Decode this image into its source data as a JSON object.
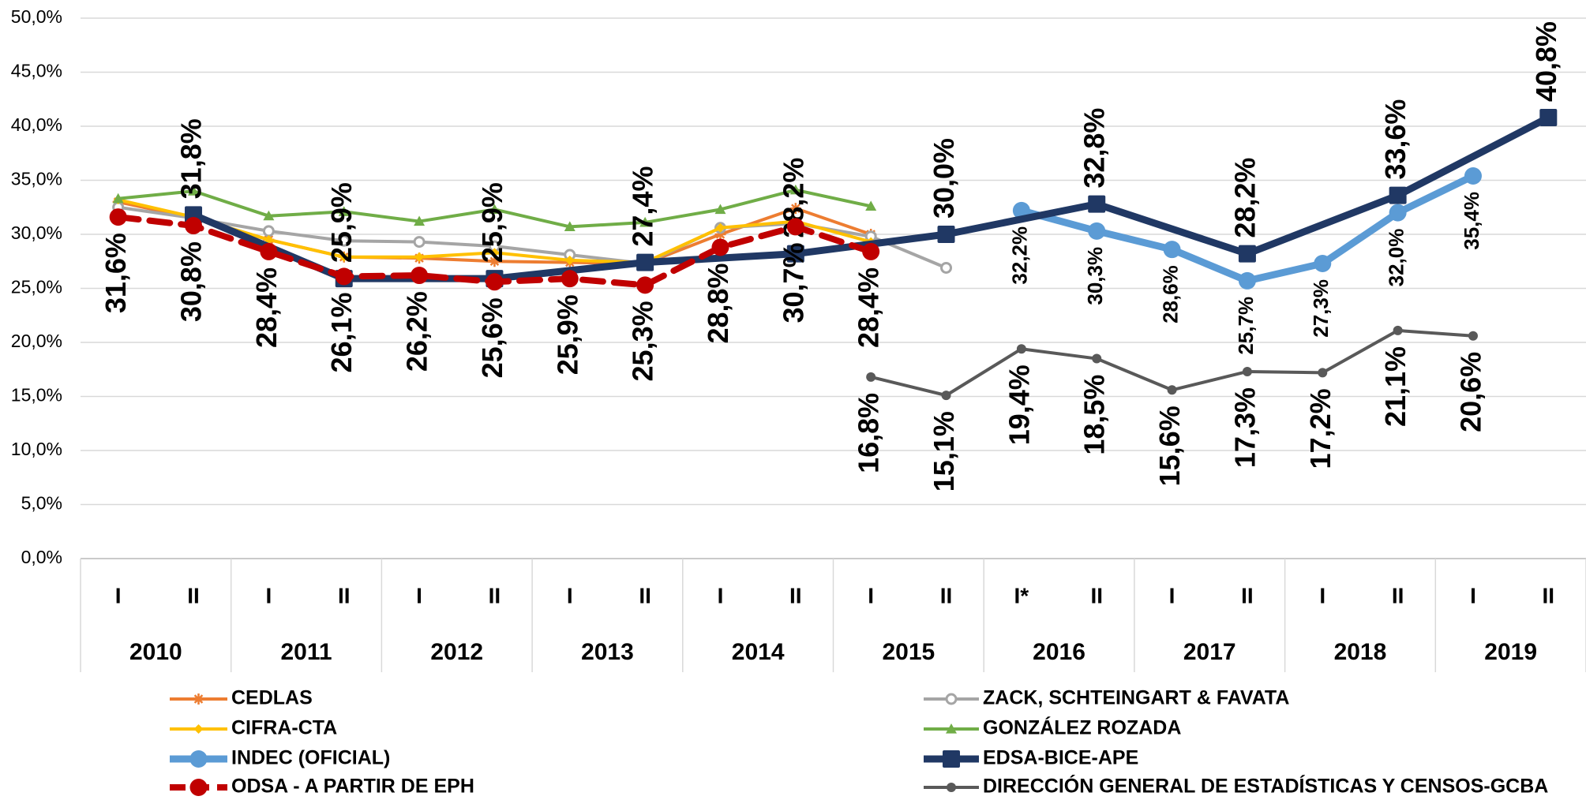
{
  "chart_data": {
    "type": "line",
    "categories": [
      "I",
      "II",
      "I",
      "II",
      "I",
      "II",
      "I",
      "II",
      "I",
      "II",
      "I",
      "II",
      "I*",
      "II",
      "I",
      "II",
      "I",
      "II",
      "I",
      "II"
    ],
    "years": [
      "2010",
      "2011",
      "2012",
      "2013",
      "2014",
      "2015",
      "2016",
      "2017",
      "2018",
      "2019"
    ],
    "ylim": [
      0,
      50
    ],
    "yticks": [
      {
        "value": 0,
        "label": "0,0%"
      },
      {
        "value": 5,
        "label": "5,0%"
      },
      {
        "value": 10,
        "label": "10,0%"
      },
      {
        "value": 15,
        "label": "15,0%"
      },
      {
        "value": 20,
        "label": "20,0%"
      },
      {
        "value": 25,
        "label": "25,0%"
      },
      {
        "value": 30,
        "label": "30,0%"
      },
      {
        "value": 35,
        "label": "35,0%"
      },
      {
        "value": 40,
        "label": "40,0%"
      },
      {
        "value": 45,
        "label": "45,0%"
      },
      {
        "value": 50,
        "label": "50,0%"
      }
    ],
    "grid": true,
    "connect_gaps": true,
    "legend": "bottom",
    "series": [
      {
        "name": "CEDLAS",
        "color": "#ED7D31",
        "marker": "star",
        "values": [
          33.0,
          31.5,
          29.5,
          27.9,
          27.8,
          27.5,
          27.4,
          27.3,
          30.0,
          32.4,
          30.0,
          null,
          null,
          null,
          null,
          null,
          null,
          null,
          null,
          null
        ]
      },
      {
        "name": "ZACK, SCHTEINGART & FAVATA",
        "color": "#A5A5A5",
        "marker": "circle-open",
        "values": [
          32.5,
          31.5,
          30.3,
          29.4,
          29.3,
          28.9,
          28.1,
          27.3,
          30.6,
          31.0,
          29.8,
          26.9,
          null,
          null,
          null,
          null,
          null,
          null,
          null,
          null
        ]
      },
      {
        "name": "CIFRA-CTA",
        "color": "#FFC000",
        "marker": "diamond",
        "values": [
          33.2,
          31.6,
          29.5,
          27.9,
          27.9,
          28.3,
          27.6,
          27.4,
          30.6,
          31.2,
          29.3,
          null,
          null,
          null,
          null,
          null,
          null,
          null,
          null,
          null
        ]
      },
      {
        "name": "GONZÁLEZ ROZADA",
        "color": "#70AD47",
        "marker": "triangle",
        "values": [
          33.3,
          34.0,
          31.7,
          32.1,
          31.2,
          32.3,
          30.7,
          31.1,
          32.3,
          34.1,
          32.6,
          null,
          null,
          null,
          null,
          null,
          null,
          null,
          null,
          null
        ]
      },
      {
        "name": "INDEC (OFICIAL)",
        "color": "#5B9BD5",
        "marker": "circle",
        "label_position": "below",
        "values": [
          null,
          null,
          null,
          null,
          null,
          null,
          null,
          null,
          null,
          null,
          null,
          null,
          32.2,
          30.3,
          28.6,
          25.7,
          27.3,
          32.0,
          35.4,
          null
        ],
        "value_labels": [
          null,
          null,
          null,
          null,
          null,
          null,
          null,
          null,
          null,
          null,
          null,
          null,
          "32,2%",
          "30,3%",
          "28,6%",
          "25,7%",
          "27,3%",
          "32,0%",
          "35,4%",
          null
        ]
      },
      {
        "name": "EDSA-BICE-APE",
        "color": "#203864",
        "marker": "square",
        "label_position": "above",
        "values": [
          null,
          31.8,
          null,
          25.9,
          null,
          25.9,
          null,
          27.4,
          null,
          28.2,
          null,
          30.0,
          null,
          32.8,
          null,
          28.2,
          null,
          33.6,
          null,
          40.8
        ],
        "value_labels": [
          null,
          "31,8%",
          null,
          "25,9%",
          null,
          "25,9%",
          null,
          "27,4%",
          null,
          "28,2%",
          null,
          "30,0%",
          null,
          "32,8%",
          null,
          "28,2%",
          null,
          "33,6%",
          null,
          "40,8%"
        ]
      },
      {
        "name": "ODSA - A PARTIR DE EPH",
        "color": "#C00000",
        "marker": "circle",
        "dash": true,
        "label_position": "below",
        "values": [
          31.6,
          30.8,
          28.4,
          26.1,
          26.2,
          25.6,
          25.9,
          25.3,
          28.8,
          30.7,
          28.4,
          null,
          null,
          null,
          null,
          null,
          null,
          null,
          null,
          null
        ],
        "value_labels": [
          "31,6%",
          "30,8%",
          "28,4%",
          "26,1%",
          "26,2%",
          "25,6%",
          "25,9%",
          "25,3%",
          "28,8%",
          "30,7%",
          "28,4%",
          null,
          null,
          null,
          null,
          null,
          null,
          null,
          null,
          null
        ]
      },
      {
        "name": "DIRECCIÓN GENERAL DE ESTADÍSTICAS Y CENSOS-GCBA",
        "color": "#595959",
        "marker": "dot",
        "label_position": "below",
        "values": [
          null,
          null,
          null,
          null,
          null,
          null,
          null,
          null,
          null,
          null,
          16.8,
          15.1,
          19.4,
          18.5,
          15.6,
          17.3,
          17.2,
          21.1,
          20.6,
          null
        ],
        "value_labels": [
          null,
          null,
          null,
          null,
          null,
          null,
          null,
          null,
          null,
          null,
          "16,8%",
          "15,1%",
          "19,4%",
          "18,5%",
          "15,6%",
          "17,3%",
          "17,2%",
          "21,1%",
          "20,6%",
          null
        ]
      }
    ]
  }
}
